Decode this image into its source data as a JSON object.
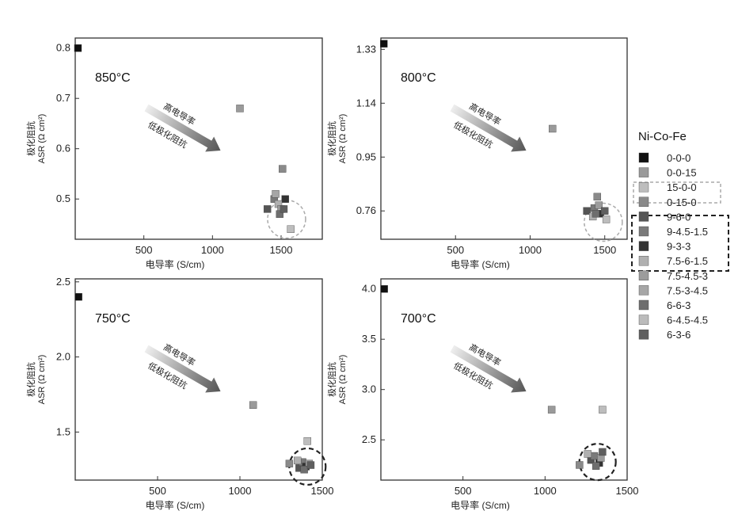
{
  "colors": {
    "0-0-0": "#111111",
    "0-0-15": "#9a9a9a",
    "15-0-0": "#bdbdbd",
    "0-15-0": "#8a8a8a",
    "9-6-0": "#555555",
    "9-4.5-1.5": "#7a7a7a",
    "9-3-3": "#333333",
    "7.5-6-1.5": "#b0b0b0",
    "7.5-4.5-3": "#9c9c9c",
    "7.5-3-4.5": "#a6a6a6",
    "6-6-3": "#6e6e6e",
    "6-4.5-4.5": "#bbbbbb",
    "6-3-6": "#5f5f5f"
  },
  "legend": {
    "title": "Ni-Co-Fe",
    "items": [
      "0-0-0",
      "0-0-15",
      "15-0-0",
      "0-15-0",
      "9-6-0",
      "9-4.5-1.5",
      "9-3-3",
      "7.5-6-1.5",
      "7.5-4.5-3",
      "7.5-3-4.5",
      "6-6-3",
      "6-4.5-4.5",
      "6-3-6"
    ]
  },
  "chart_data": [
    {
      "type": "scatter",
      "title": "850°C",
      "xlabel": "电导率 (S/cm)",
      "ylabel_top": "极化阻抗",
      "ylabel": "ASR (Ω cm²)",
      "xlim": [
        0,
        1800
      ],
      "ylim": [
        0.42,
        0.82
      ],
      "xticks": [
        500,
        1000,
        1500
      ],
      "xtick_labels": [
        "500",
        "1000",
        "1500"
      ],
      "yticks": [
        0.5,
        0.6,
        0.7,
        0.8
      ],
      "ytick_labels": [
        "0.5",
        "0.6",
        "0.7",
        "0.8"
      ],
      "annotation": [
        "高电导率",
        "低极化阻抗"
      ],
      "highlight": {
        "x": 1540,
        "y": 0.46,
        "style": "dashed-light"
      },
      "points": [
        {
          "series": "0-0-0",
          "x": 20,
          "y": 0.8
        },
        {
          "series": "0-0-15",
          "x": 1200,
          "y": 0.68
        },
        {
          "series": "0-15-0",
          "x": 1510,
          "y": 0.56
        },
        {
          "series": "9-6-0",
          "x": 1400,
          "y": 0.48
        },
        {
          "series": "9-4.5-1.5",
          "x": 1450,
          "y": 0.5
        },
        {
          "series": "9-3-3",
          "x": 1530,
          "y": 0.5
        },
        {
          "series": "7.5-6-1.5",
          "x": 1480,
          "y": 0.49
        },
        {
          "series": "7.5-4.5-3",
          "x": 1500,
          "y": 0.48
        },
        {
          "series": "7.5-3-4.5",
          "x": 1460,
          "y": 0.51
        },
        {
          "series": "6-6-3",
          "x": 1490,
          "y": 0.47
        },
        {
          "series": "6-3-6",
          "x": 1520,
          "y": 0.48
        },
        {
          "series": "15-0-0",
          "x": 1570,
          "y": 0.44
        }
      ]
    },
    {
      "type": "scatter",
      "title": "800°C",
      "xlabel": "电导率 (S/cm)",
      "ylabel_top": "极化阻抗",
      "ylabel": "ASR (Ω cm²)",
      "xlim": [
        0,
        1650
      ],
      "ylim": [
        0.66,
        1.37
      ],
      "xticks": [
        500,
        1000,
        1500
      ],
      "xtick_labels": [
        "500",
        "1000",
        "1500"
      ],
      "yticks": [
        0.76,
        0.95,
        1.14,
        1.33
      ],
      "ytick_labels": [
        "0.76",
        "0.95",
        "1.14",
        "1.33"
      ],
      "annotation": [
        "高电导率",
        "低极化阻抗"
      ],
      "highlight": {
        "x": 1490,
        "y": 0.72,
        "style": "dashed-light"
      },
      "points": [
        {
          "series": "0-0-0",
          "x": 20,
          "y": 1.35
        },
        {
          "series": "0-0-15",
          "x": 1150,
          "y": 1.05
        },
        {
          "series": "0-15-0",
          "x": 1450,
          "y": 0.81
        },
        {
          "series": "9-6-0",
          "x": 1380,
          "y": 0.76
        },
        {
          "series": "9-4.5-1.5",
          "x": 1430,
          "y": 0.77
        },
        {
          "series": "9-3-3",
          "x": 1470,
          "y": 0.75
        },
        {
          "series": "7.5-6-1.5",
          "x": 1420,
          "y": 0.74
        },
        {
          "series": "7.5-4.5-3",
          "x": 1460,
          "y": 0.78
        },
        {
          "series": "6-6-3",
          "x": 1440,
          "y": 0.75
        },
        {
          "series": "6-3-6",
          "x": 1500,
          "y": 0.76
        },
        {
          "series": "15-0-0",
          "x": 1510,
          "y": 0.73
        }
      ]
    },
    {
      "type": "scatter",
      "title": "750°C",
      "xlabel": "电导率 (S/cm)",
      "ylabel_top": "极化阻抗",
      "ylabel": "ASR (Ω cm²)",
      "xlim": [
        0,
        1500
      ],
      "ylim": [
        1.18,
        2.52
      ],
      "xticks": [
        500,
        1000,
        1500
      ],
      "xtick_labels": [
        "500",
        "1000",
        "1500"
      ],
      "yticks": [
        1.5,
        2.0,
        2.5
      ],
      "ytick_labels": [
        "1.5",
        "2.0",
        "2.5"
      ],
      "annotation": [
        "高电导率",
        "低极化阻抗"
      ],
      "highlight": {
        "x": 1410,
        "y": 1.27,
        "style": "dashed-dark"
      },
      "points": [
        {
          "series": "0-0-0",
          "x": 20,
          "y": 2.4
        },
        {
          "series": "0-0-15",
          "x": 1080,
          "y": 1.68
        },
        {
          "series": "15-0-0",
          "x": 1410,
          "y": 1.44
        },
        {
          "series": "0-15-0",
          "x": 1300,
          "y": 1.29
        },
        {
          "series": "9-6-0",
          "x": 1360,
          "y": 1.26
        },
        {
          "series": "9-4.5-1.5",
          "x": 1380,
          "y": 1.3
        },
        {
          "series": "9-3-3",
          "x": 1400,
          "y": 1.27
        },
        {
          "series": "7.5-6-1.5",
          "x": 1350,
          "y": 1.31
        },
        {
          "series": "7.5-4.5-3",
          "x": 1420,
          "y": 1.29
        },
        {
          "series": "6-6-3",
          "x": 1390,
          "y": 1.25
        },
        {
          "series": "6-3-6",
          "x": 1430,
          "y": 1.28
        }
      ]
    },
    {
      "type": "scatter",
      "title": "700°C",
      "xlabel": "电导率 (S/cm)",
      "ylabel_top": "极化阻抗",
      "ylabel": "ASR (Ω cm²)",
      "xlim": [
        0,
        1500
      ],
      "ylim": [
        2.1,
        4.1
      ],
      "xticks": [
        500,
        1000,
        1500
      ],
      "xtick_labels": [
        "500",
        "1000",
        "1500"
      ],
      "yticks": [
        2.5,
        3.0,
        3.5,
        4.0
      ],
      "ytick_labels": [
        "2.5",
        "3.0",
        "3.5",
        "4.0"
      ],
      "annotation": [
        "高电导率",
        "低极化阻抗"
      ],
      "highlight": {
        "x": 1320,
        "y": 2.28,
        "style": "dashed-dark"
      },
      "points": [
        {
          "series": "0-0-0",
          "x": 20,
          "y": 4.0
        },
        {
          "series": "0-0-15",
          "x": 1040,
          "y": 2.8
        },
        {
          "series": "15-0-0",
          "x": 1350,
          "y": 2.8
        },
        {
          "series": "0-15-0",
          "x": 1210,
          "y": 2.25
        },
        {
          "series": "9-6-0",
          "x": 1280,
          "y": 2.3
        },
        {
          "series": "9-4.5-1.5",
          "x": 1300,
          "y": 2.34
        },
        {
          "series": "9-3-3",
          "x": 1330,
          "y": 2.27
        },
        {
          "series": "7.5-6-1.5",
          "x": 1260,
          "y": 2.36
        },
        {
          "series": "7.5-4.5-3",
          "x": 1340,
          "y": 2.32
        },
        {
          "series": "6-6-3",
          "x": 1310,
          "y": 2.24
        },
        {
          "series": "6-3-6",
          "x": 1350,
          "y": 2.38
        }
      ]
    }
  ]
}
